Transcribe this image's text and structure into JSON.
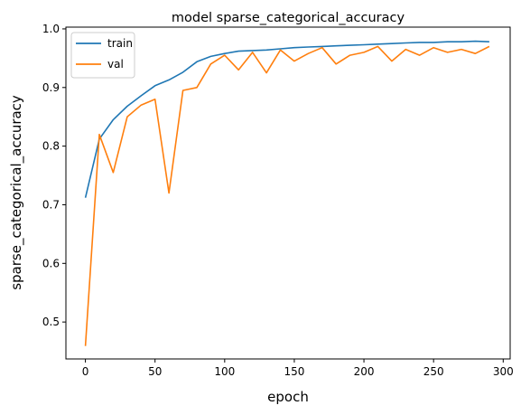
{
  "chart_data": {
    "type": "line",
    "title": "model sparse_categorical_accuracy",
    "xlabel": "epoch",
    "ylabel": "sparse_categorical_accuracy",
    "xlim": [
      -14,
      305
    ],
    "ylim": [
      0.437,
      1.003
    ],
    "xticks": [
      0,
      50,
      100,
      150,
      200,
      250,
      300
    ],
    "yticks": [
      0.5,
      0.6,
      0.7,
      0.8,
      0.9,
      1.0
    ],
    "ytick_labels": [
      "0.5",
      "0.6",
      "0.7",
      "0.8",
      "0.9",
      "1.0"
    ],
    "grid": false,
    "legend_position": "upper-left",
    "x": [
      0,
      10,
      20,
      30,
      40,
      50,
      60,
      70,
      80,
      90,
      100,
      110,
      120,
      130,
      140,
      150,
      160,
      170,
      180,
      190,
      200,
      210,
      220,
      230,
      240,
      250,
      260,
      270,
      280,
      290
    ],
    "series": [
      {
        "name": "train",
        "color": "#1f77b4",
        "values": [
          0.712,
          0.812,
          0.845,
          0.868,
          0.886,
          0.903,
          0.913,
          0.926,
          0.944,
          0.953,
          0.958,
          0.962,
          0.963,
          0.964,
          0.966,
          0.968,
          0.969,
          0.97,
          0.971,
          0.972,
          0.973,
          0.974,
          0.975,
          0.976,
          0.977,
          0.977,
          0.978,
          0.978,
          0.979,
          0.978
        ]
      },
      {
        "name": "val",
        "color": "#ff7f0e",
        "values": [
          0.459,
          0.82,
          0.755,
          0.85,
          0.87,
          0.88,
          0.72,
          0.895,
          0.9,
          0.94,
          0.955,
          0.93,
          0.96,
          0.925,
          0.964,
          0.945,
          0.958,
          0.968,
          0.94,
          0.955,
          0.96,
          0.97,
          0.945,
          0.965,
          0.955,
          0.968,
          0.96,
          0.965,
          0.958,
          0.97
        ]
      }
    ]
  }
}
